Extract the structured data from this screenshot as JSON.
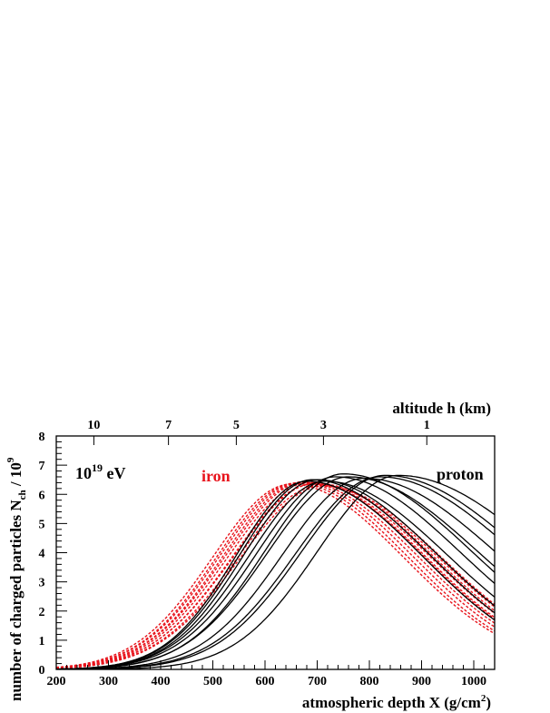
{
  "chart_data": {
    "type": "line",
    "x_axis": {
      "label_main": "atmospheric depth X (g/cm",
      "label_sup": "2",
      "label_end": ")",
      "range": [
        200,
        1040
      ],
      "ticks": [
        200,
        300,
        400,
        500,
        600,
        700,
        800,
        900,
        1000
      ]
    },
    "top_axis": {
      "label": "altitude h (km)",
      "ticks": [
        {
          "label": "10",
          "depth": 272
        },
        {
          "label": "7",
          "depth": 415
        },
        {
          "label": "5",
          "depth": 545
        },
        {
          "label": "3",
          "depth": 712
        },
        {
          "label": "1",
          "depth": 910
        }
      ]
    },
    "y_axis": {
      "label_main": "number of charged particles N",
      "label_sub": "ch",
      "label_mid": " / 10",
      "label_sup": "9",
      "range": [
        0,
        8
      ],
      "ticks": [
        0,
        1,
        2,
        3,
        4,
        5,
        6,
        7,
        8
      ]
    },
    "annotations": {
      "energy_base": "10",
      "energy_exp": "19",
      "energy_unit": " eV",
      "iron": "iron",
      "proton": "proton"
    },
    "colors": {
      "proton": "#000000",
      "iron": "#e8141c"
    },
    "series": [
      {
        "name": "proton",
        "xmax": 680,
        "nmax": 6.45,
        "w1": 135,
        "w2": 220
      },
      {
        "name": "proton",
        "xmax": 690,
        "nmax": 6.5,
        "w1": 138,
        "w2": 225
      },
      {
        "name": "proton",
        "xmax": 700,
        "nmax": 6.5,
        "w1": 140,
        "w2": 230
      },
      {
        "name": "proton",
        "xmax": 715,
        "nmax": 6.45,
        "w1": 145,
        "w2": 235
      },
      {
        "name": "proton",
        "xmax": 735,
        "nmax": 6.6,
        "w1": 150,
        "w2": 240
      },
      {
        "name": "proton",
        "xmax": 750,
        "nmax": 6.7,
        "w1": 150,
        "w2": 245
      },
      {
        "name": "proton",
        "xmax": 760,
        "nmax": 6.6,
        "w1": 155,
        "w2": 250
      },
      {
        "name": "proton",
        "xmax": 790,
        "nmax": 6.55,
        "w1": 155,
        "w2": 255
      },
      {
        "name": "proton",
        "xmax": 820,
        "nmax": 6.6,
        "w1": 160,
        "w2": 260
      },
      {
        "name": "proton",
        "xmax": 830,
        "nmax": 6.65,
        "w1": 160,
        "w2": 265
      },
      {
        "name": "proton",
        "xmax": 855,
        "nmax": 6.65,
        "w1": 155,
        "w2": 275
      },
      {
        "name": "iron",
        "xmax": 650,
        "nmax": 6.35,
        "w1": 150,
        "w2": 215
      },
      {
        "name": "iron",
        "xmax": 658,
        "nmax": 6.38,
        "w1": 150,
        "w2": 215
      },
      {
        "name": "iron",
        "xmax": 665,
        "nmax": 6.4,
        "w1": 152,
        "w2": 218
      },
      {
        "name": "iron",
        "xmax": 672,
        "nmax": 6.42,
        "w1": 152,
        "w2": 220
      },
      {
        "name": "iron",
        "xmax": 680,
        "nmax": 6.45,
        "w1": 155,
        "w2": 222
      },
      {
        "name": "iron",
        "xmax": 685,
        "nmax": 6.4,
        "w1": 155,
        "w2": 222
      },
      {
        "name": "iron",
        "xmax": 692,
        "nmax": 6.35,
        "w1": 155,
        "w2": 225
      },
      {
        "name": "iron",
        "xmax": 698,
        "nmax": 6.38,
        "w1": 158,
        "w2": 225
      },
      {
        "name": "iron",
        "xmax": 705,
        "nmax": 6.3,
        "w1": 158,
        "w2": 228
      },
      {
        "name": "iron",
        "xmax": 712,
        "nmax": 6.28,
        "w1": 160,
        "w2": 228
      }
    ]
  }
}
